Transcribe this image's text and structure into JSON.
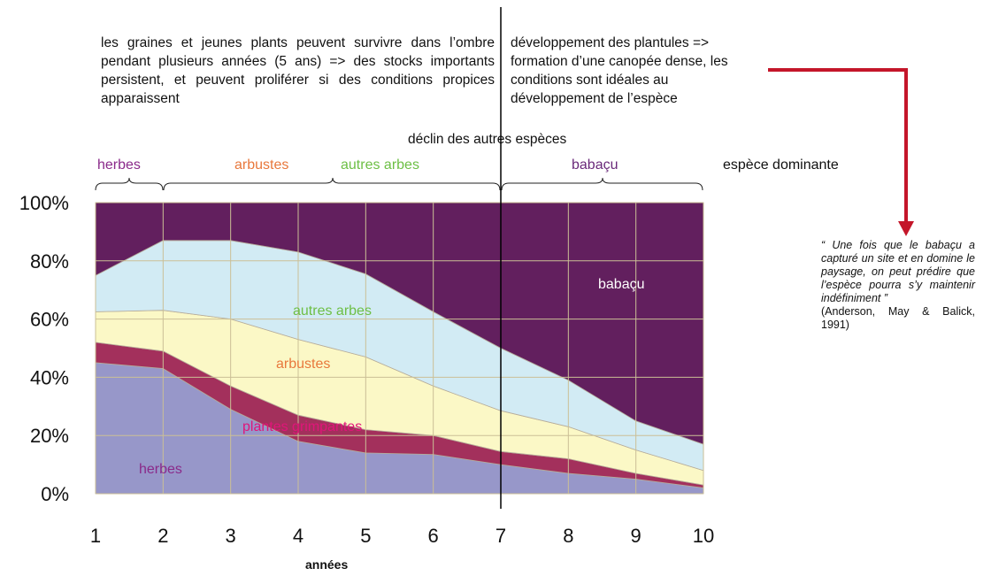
{
  "notes": {
    "left": "les graines et jeunes plants peuvent survivre dans l’ombre pendant plusieurs années (5 ans) => des stocks importants persistent, et peuvent proliférer si des conditions propices  apparaissent",
    "right": "développement des plantules => formation d’une canopée dense, les conditions sont idéales au développement de l’espèce",
    "decline": "déclin des autres espèces",
    "dominant": "espèce dominante",
    "quote": "“ Une fois que le babaçu a capturé un site et en domine le paysage, on peut prédire que l’espèce pourra s’y maintenir indéfiniment ”",
    "citation": "(Anderson, May & Balick, 1991)"
  },
  "phases": {
    "herbes": "herbes",
    "arbustes": "arbustes",
    "autres_arbes": "autres arbes",
    "babacu": "babaçu"
  },
  "colors": {
    "herbes": "#9797c9",
    "plantes_grimpantes": "#a3305c",
    "arbustes": "#fbf8c6",
    "autres_arbes": "#d2ebf4",
    "babacu": "#621f5e",
    "label_herbes": "#8a2a8a",
    "label_arbustes": "#e8783c",
    "label_autres": "#6dbf45",
    "label_babacu": "#6a2a7a",
    "label_grimpantes": "#e0157a",
    "arrow": "#c4162a"
  },
  "chart_data": {
    "type": "area",
    "stacked": true,
    "xlabel": "années",
    "x": [
      1,
      2,
      3,
      4,
      5,
      6,
      7,
      8,
      9,
      10
    ],
    "ylim": [
      0,
      100
    ],
    "yticks": [
      "0%",
      "20%",
      "40%",
      "60%",
      "80%",
      "100%"
    ],
    "grid": true,
    "series": [
      {
        "name": "herbes",
        "values": [
          45,
          43,
          29,
          18,
          14,
          13.5,
          10,
          7,
          5,
          2
        ]
      },
      {
        "name": "plantes grimpantes",
        "values": [
          7,
          6,
          8,
          9,
          8,
          6.5,
          4.5,
          5,
          2,
          1
        ]
      },
      {
        "name": "arbustes",
        "values": [
          10.5,
          14,
          23,
          26,
          25,
          17,
          14,
          11,
          8,
          5
        ]
      },
      {
        "name": "autres arbes",
        "values": [
          12.5,
          24,
          27,
          30,
          28.5,
          25.5,
          21.5,
          16,
          10,
          9
        ]
      },
      {
        "name": "babaçu",
        "values": [
          25,
          13,
          13,
          17,
          24.5,
          37.5,
          50,
          61,
          75,
          83
        ]
      }
    ],
    "annotations": {
      "divider_x": 7
    }
  }
}
